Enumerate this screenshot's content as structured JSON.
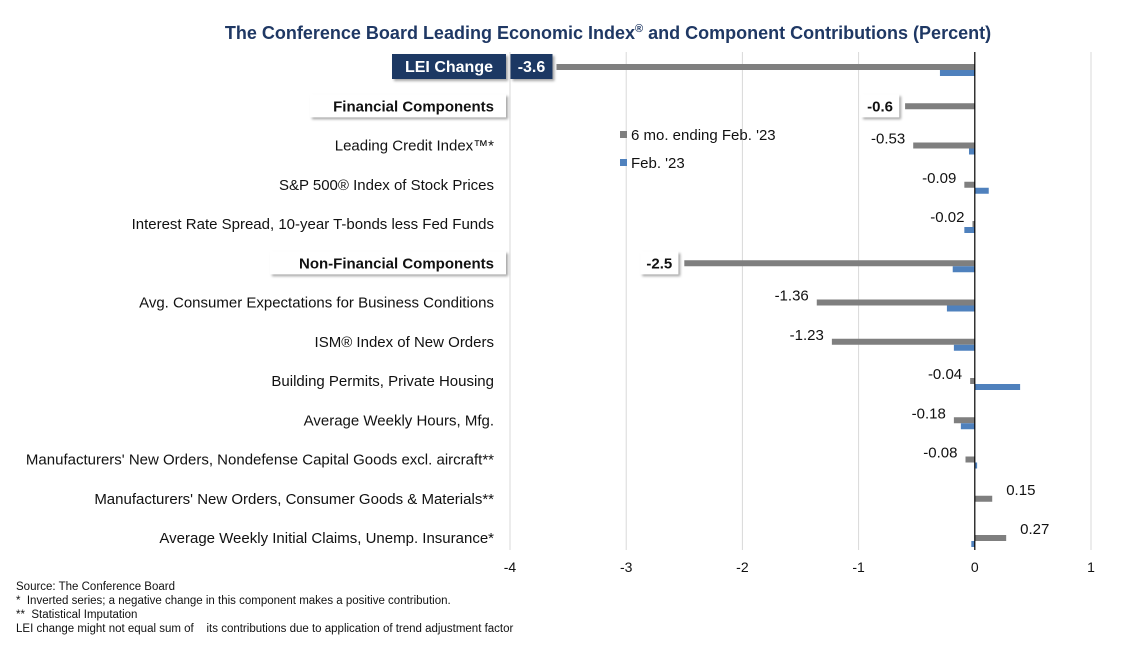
{
  "chart_data": {
    "type": "bar",
    "orientation": "horizontal",
    "title": "The Conference Board Leading Economic Index",
    "title_reg": "®",
    "title_suffix": " and Component Contributions (Percent)",
    "xlim": [
      -4,
      1
    ],
    "xticks": [
      -4,
      -3,
      -2,
      -1,
      0,
      1
    ],
    "grid": true,
    "legend_position": "upper-middle",
    "series": [
      {
        "name": "6 mo. ending Feb. '23",
        "color": "#7f7f7f"
      },
      {
        "name": "Feb. '23",
        "color": "#4f81bd"
      }
    ],
    "rows": [
      {
        "kind": "lei",
        "label": "LEI Change",
        "six_month": -3.6,
        "monthly": -0.3,
        "value_label": "-3.6"
      },
      {
        "kind": "section",
        "label": "Financial Components",
        "six_month": -0.6,
        "value_label": "-0.6"
      },
      {
        "kind": "item",
        "label": "Leading Credit Index™*",
        "six_month": -0.53,
        "monthly": -0.05,
        "value_label": "-0.53"
      },
      {
        "kind": "item",
        "label": "S&P 500® Index of Stock Prices",
        "six_month": -0.09,
        "monthly": 0.12,
        "value_label": "-0.09"
      },
      {
        "kind": "item",
        "label": "Interest Rate Spread, 10-year T-bonds less Fed Funds",
        "six_month": -0.02,
        "monthly": -0.09,
        "value_label": "-0.02"
      },
      {
        "kind": "section",
        "label": "Non-Financial Components",
        "six_month": -2.5,
        "monthly": -0.19,
        "value_label": "-2.5"
      },
      {
        "kind": "item",
        "label": "Avg. Consumer Expectations for Business Conditions",
        "six_month": -1.36,
        "monthly": -0.24,
        "value_label": "-1.36"
      },
      {
        "kind": "item",
        "label": "ISM® Index of New Orders",
        "six_month": -1.23,
        "monthly": -0.18,
        "value_label": "-1.23"
      },
      {
        "kind": "item",
        "label": "Building Permits, Private Housing",
        "six_month": -0.04,
        "monthly": 0.39,
        "value_label": "-0.04"
      },
      {
        "kind": "item",
        "label": "Average Weekly Hours, Mfg.",
        "six_month": -0.18,
        "monthly": -0.12,
        "value_label": "-0.18"
      },
      {
        "kind": "item",
        "label": "Manufacturers' New Orders, Nondefense Capital Goods excl. aircraft**",
        "six_month": -0.08,
        "monthly": 0.02,
        "value_label": "-0.08"
      },
      {
        "kind": "item",
        "label": "Manufacturers' New Orders, Consumer Goods & Materials**",
        "six_month": 0.15,
        "value_label": "0.15"
      },
      {
        "kind": "item",
        "label": "Average Weekly Initial Claims, Unemp. Insurance*",
        "six_month": 0.27,
        "monthly": -0.03,
        "value_label": "0.27"
      }
    ]
  },
  "footnotes": [
    "Source: The Conference Board",
    "*  Inverted series; a negative change in this component makes a positive contribution.",
    "**  Statistical Imputation",
    "LEI change might not equal sum of    its contributions due to application of trend adjustment factor"
  ]
}
